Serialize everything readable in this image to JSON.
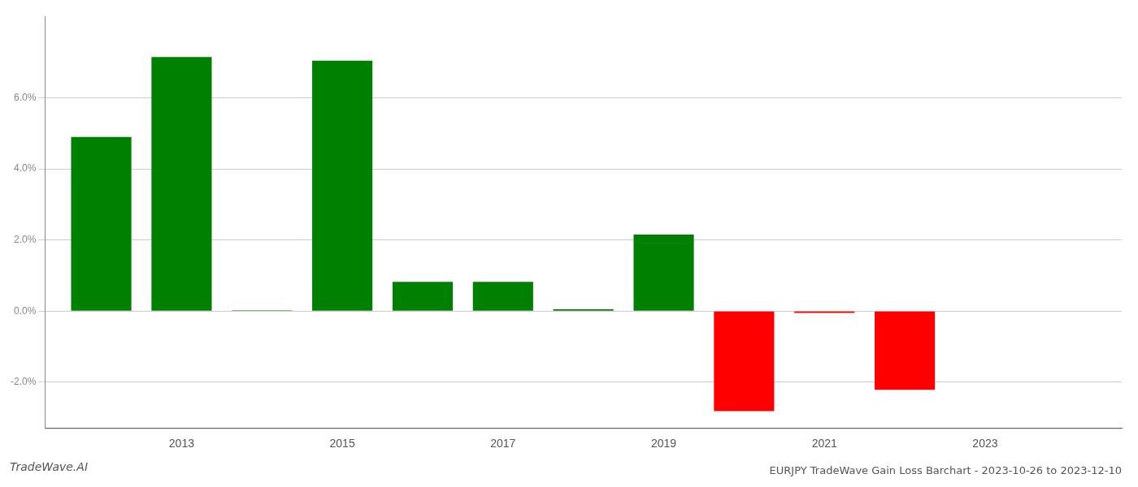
{
  "chart_data": {
    "type": "bar",
    "title": "EURJPY TradeWave Gain Loss Barchart - 2023-10-26 to 2023-12-10",
    "annotations": [
      "TradeWave.AI"
    ],
    "x": [
      2012,
      2013,
      2014,
      2015,
      2016,
      2017,
      2018,
      2019,
      2020,
      2021,
      2022,
      2023
    ],
    "values": [
      4.9,
      7.15,
      0.02,
      7.05,
      0.82,
      0.82,
      0.05,
      2.15,
      -2.82,
      -0.05,
      -2.22,
      0.0
    ],
    "colors": [
      "#008000",
      "#008000",
      "#008000",
      "#008000",
      "#008000",
      "#008000",
      "#008000",
      "#008000",
      "#ff0000",
      "#ff0000",
      "#ff0000",
      "#ffffff"
    ],
    "xlim": [
      2011.3,
      2024.7
    ],
    "xticks": [
      2013,
      2015,
      2017,
      2019,
      2021,
      2023
    ],
    "ylim": [
      -3.3,
      8.3
    ],
    "yticks": [
      {
        "value": -2.0,
        "label": "-2.0%"
      },
      {
        "value": 0.0,
        "label": "0.0%"
      },
      {
        "value": 2.0,
        "label": "2.0%"
      },
      {
        "value": 4.0,
        "label": "4.0%"
      },
      {
        "value": 6.0,
        "label": "6.0%"
      }
    ],
    "grid": true
  }
}
